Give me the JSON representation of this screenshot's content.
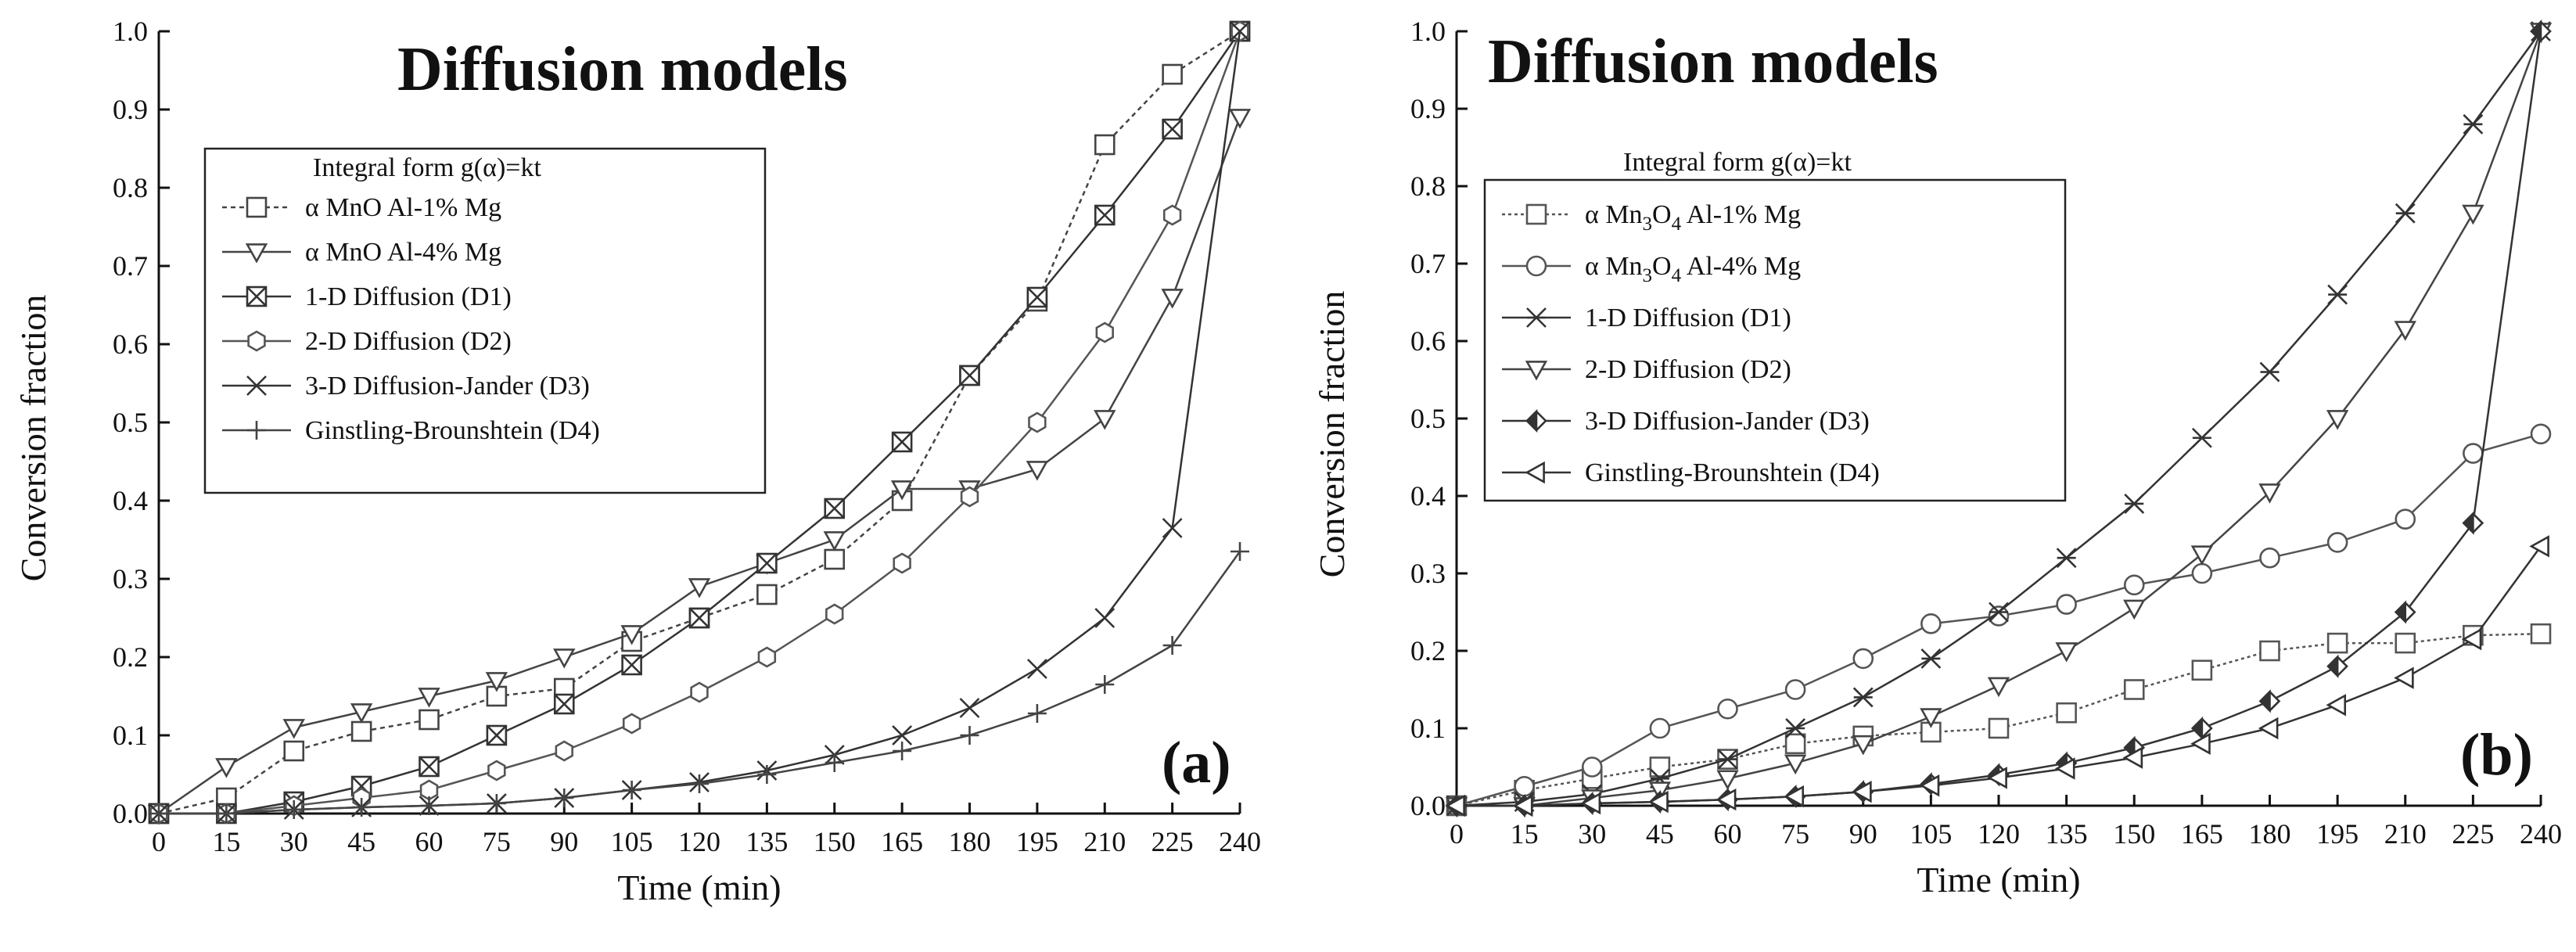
{
  "chart_data": [
    {
      "type": "line",
      "panel_label": "(a)",
      "title": "Diffusion models",
      "xlabel": "Time (min)",
      "ylabel": "Conversion fraction",
      "xlim": [
        0,
        240
      ],
      "ylim": [
        0,
        1.0
      ],
      "x_ticks": [
        0,
        15,
        30,
        45,
        60,
        75,
        90,
        105,
        120,
        135,
        150,
        165,
        180,
        195,
        210,
        225,
        240
      ],
      "y_ticks": [
        0.0,
        0.1,
        0.2,
        0.3,
        0.4,
        0.5,
        0.6,
        0.7,
        0.8,
        0.9,
        1.0
      ],
      "y_tick_labels": [
        "0.0",
        "0.1",
        "0.2",
        "0.3",
        "0.4",
        "0.5",
        "0.6",
        "0.7",
        "0.8",
        "0.9",
        "1.0"
      ],
      "legend_title": "Integral form g(α)=kt",
      "legend_position": "upper-left",
      "x": [
        0,
        15,
        30,
        45,
        60,
        75,
        90,
        105,
        120,
        135,
        150,
        165,
        180,
        195,
        210,
        225,
        240
      ],
      "series": [
        {
          "name": "α MnO  Al-1% Mg",
          "marker": "square",
          "color": "#444444",
          "dash": "6,5",
          "values": [
            0.0,
            0.02,
            0.08,
            0.105,
            0.12,
            0.15,
            0.16,
            0.22,
            0.25,
            0.28,
            0.325,
            0.4,
            0.56,
            0.655,
            0.855,
            0.945,
            1.0
          ]
        },
        {
          "name": "α MnO  Al-4% Mg",
          "marker": "triangle-down",
          "color": "#444444",
          "dash": "",
          "values": [
            0.0,
            0.06,
            0.11,
            0.13,
            0.15,
            0.17,
            0.2,
            0.23,
            0.29,
            0.32,
            0.35,
            0.415,
            0.415,
            0.44,
            0.505,
            0.66,
            0.89
          ]
        },
        {
          "name": "1-D Diffusion (D1)",
          "marker": "box-x",
          "color": "#333333",
          "dash": "",
          "values": [
            0.0,
            0.0,
            0.015,
            0.035,
            0.06,
            0.1,
            0.14,
            0.19,
            0.25,
            0.32,
            0.39,
            0.475,
            0.56,
            0.66,
            0.765,
            0.875,
            1.0
          ]
        },
        {
          "name": "2-D Diffusion (D2)",
          "marker": "hexagon",
          "color": "#555555",
          "dash": "",
          "values": [
            0.0,
            0.0,
            0.01,
            0.02,
            0.03,
            0.055,
            0.08,
            0.115,
            0.155,
            0.2,
            0.255,
            0.32,
            0.405,
            0.5,
            0.615,
            0.765,
            1.0
          ]
        },
        {
          "name": "3-D Diffusion-Jander (D3)",
          "marker": "x",
          "color": "#333333",
          "dash": "",
          "values": [
            0.0,
            0.0,
            0.005,
            0.008,
            0.01,
            0.013,
            0.02,
            0.03,
            0.04,
            0.055,
            0.075,
            0.1,
            0.135,
            0.185,
            0.25,
            0.365,
            1.0
          ]
        },
        {
          "name": "Ginstling-Brounshtein (D4)",
          "marker": "plus",
          "color": "#444444",
          "dash": "",
          "values": [
            0.0,
            0.0,
            0.005,
            0.008,
            0.01,
            0.013,
            0.02,
            0.03,
            0.038,
            0.05,
            0.065,
            0.08,
            0.1,
            0.128,
            0.165,
            0.215,
            0.335
          ]
        }
      ]
    },
    {
      "type": "line",
      "panel_label": "(b)",
      "title": "Diffusion models",
      "xlabel": "Time (min)",
      "ylabel": "Conversion fraction",
      "xlim": [
        0,
        240
      ],
      "ylim": [
        0,
        1.0
      ],
      "x_ticks": [
        0,
        15,
        30,
        45,
        60,
        75,
        90,
        105,
        120,
        135,
        150,
        165,
        180,
        195,
        210,
        225,
        240
      ],
      "y_ticks": [
        0.0,
        0.1,
        0.2,
        0.3,
        0.4,
        0.5,
        0.6,
        0.7,
        0.8,
        0.9,
        1.0
      ],
      "y_tick_labels": [
        "0.0",
        "0.1",
        "0.2",
        "0.3",
        "0.4",
        "0.5",
        "0.6",
        "0.7",
        "0.8",
        "0.9",
        "1.0"
      ],
      "legend_title": "Integral form g(α)=kt",
      "legend_position": "upper-left",
      "x": [
        0,
        15,
        30,
        45,
        60,
        75,
        90,
        105,
        120,
        135,
        150,
        165,
        180,
        195,
        210,
        225,
        240
      ],
      "series": [
        {
          "name": "α Mn3O4  Al-1% Mg",
          "marker": "square",
          "color": "#555555",
          "dash": "4,4",
          "values": [
            0.0,
            0.02,
            0.035,
            0.05,
            0.06,
            0.08,
            0.09,
            0.095,
            0.1,
            0.12,
            0.15,
            0.175,
            0.2,
            0.21,
            0.21,
            0.22,
            0.222
          ]
        },
        {
          "name": "α Mn3O4  Al-4% Mg",
          "marker": "circle",
          "color": "#555555",
          "dash": "",
          "values": [
            0.0,
            0.025,
            0.05,
            0.1,
            0.125,
            0.15,
            0.19,
            0.235,
            0.245,
            0.26,
            0.285,
            0.3,
            0.32,
            0.34,
            0.37,
            0.455,
            0.48
          ]
        },
        {
          "name": "1-D Diffusion (D1)",
          "marker": "asterisk",
          "color": "#333333",
          "dash": "",
          "values": [
            0.0,
            0.005,
            0.015,
            0.035,
            0.06,
            0.1,
            0.14,
            0.19,
            0.25,
            0.32,
            0.39,
            0.475,
            0.56,
            0.66,
            0.765,
            0.88,
            1.0
          ]
        },
        {
          "name": "2-D Diffusion (D2)",
          "marker": "triangle-down",
          "color": "#444444",
          "dash": "",
          "values": [
            0.0,
            0.0,
            0.01,
            0.02,
            0.035,
            0.055,
            0.08,
            0.115,
            0.155,
            0.2,
            0.255,
            0.325,
            0.405,
            0.5,
            0.615,
            0.765,
            1.0
          ]
        },
        {
          "name": "3-D Diffusion-Jander (D3)",
          "marker": "diamond-half",
          "color": "#333333",
          "dash": "",
          "values": [
            0.0,
            0.0,
            0.003,
            0.005,
            0.008,
            0.012,
            0.018,
            0.028,
            0.04,
            0.055,
            0.075,
            0.1,
            0.135,
            0.18,
            0.25,
            0.365,
            1.0
          ]
        },
        {
          "name": "Ginstling-Brounshtein (D4)",
          "marker": "triangle-left",
          "color": "#333333",
          "dash": "",
          "values": [
            0.0,
            0.0,
            0.003,
            0.005,
            0.008,
            0.012,
            0.018,
            0.026,
            0.036,
            0.048,
            0.062,
            0.08,
            0.1,
            0.13,
            0.165,
            0.215,
            0.335
          ]
        }
      ]
    }
  ]
}
